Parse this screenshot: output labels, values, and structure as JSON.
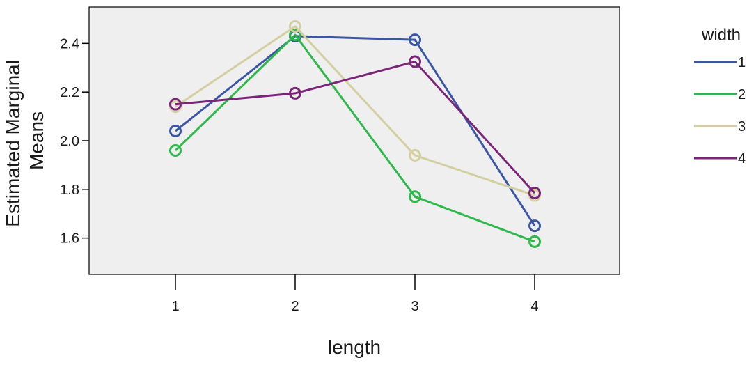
{
  "chart_data": {
    "type": "line",
    "xlabel": "length",
    "ylabel": "Estimated Marginal Means",
    "ylabel_lines": [
      "Estimated Marginal",
      "Means"
    ],
    "categories": [
      "1",
      "2",
      "3",
      "4"
    ],
    "ylim": [
      1.45,
      2.55
    ],
    "yticks": [
      1.6,
      1.8,
      2.0,
      2.2,
      2.4
    ],
    "ytick_labels": [
      "1.6",
      "1.8",
      "2.0",
      "2.2",
      "2.4"
    ],
    "grid": false,
    "legend": {
      "title": "width",
      "placement": "right"
    },
    "series": [
      {
        "name": "1",
        "color": "#3a56a6",
        "values": [
          2.04,
          2.43,
          2.415,
          1.65
        ]
      },
      {
        "name": "2",
        "color": "#2db84a",
        "values": [
          1.96,
          2.435,
          1.77,
          1.585
        ]
      },
      {
        "name": "3",
        "color": "#d4cfa0",
        "values": [
          2.14,
          2.47,
          1.94,
          1.775
        ]
      },
      {
        "name": "4",
        "color": "#7a2577",
        "values": [
          2.15,
          2.195,
          2.325,
          1.785
        ]
      }
    ],
    "colors": {
      "plot_background": "#efefef",
      "axis": "#000000"
    }
  }
}
